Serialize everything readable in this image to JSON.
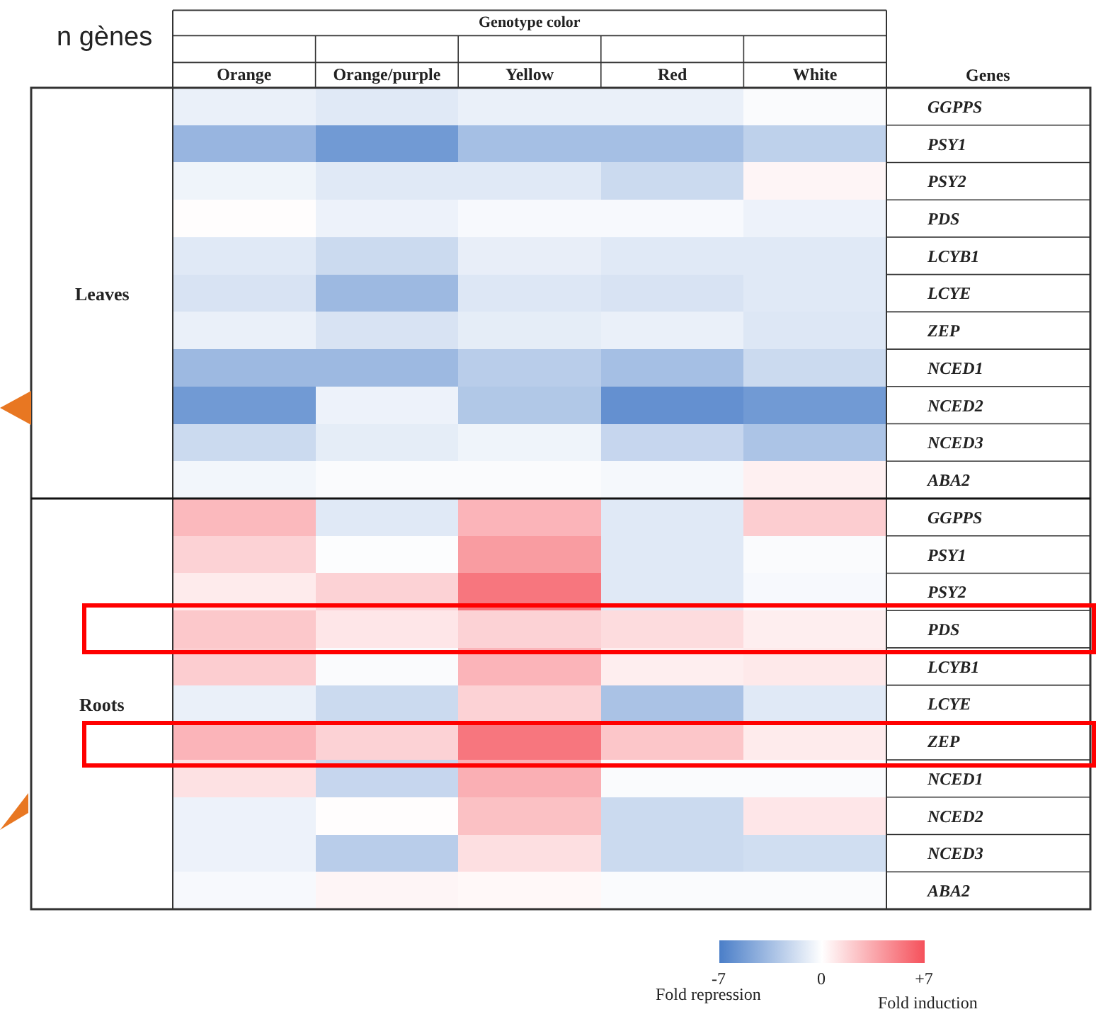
{
  "chart_data": {
    "type": "heatmap",
    "categories": [
      "Orange",
      "Orange/purple",
      "Yellow",
      "Red",
      "White"
    ],
    "y_categories": [
      "GGPPS",
      "PSY1",
      "PSY2",
      "PDS",
      "LCYB1",
      "LCYE",
      "ZEP",
      "NCED1",
      "NCED2",
      "NCED3",
      "ABA2",
      "GGPPS",
      "PSY1",
      "PSY2",
      "PDS",
      "LCYB1",
      "LCYE",
      "ZEP",
      "NCED1",
      "NCED2",
      "NCED3",
      "ABA2"
    ],
    "cells": [
      [
        -0.8,
        -1.2,
        -0.8,
        -0.8,
        -0.2
      ],
      [
        -4,
        -5.5,
        -3.5,
        -3.5,
        -2.5
      ],
      [
        -0.6,
        -1.2,
        -1.2,
        -2,
        0.4
      ],
      [
        0.1,
        -0.7,
        -0.3,
        -0.3,
        -0.7
      ],
      [
        -1.2,
        -2,
        -0.9,
        -1.2,
        -1.2
      ],
      [
        -1.5,
        -3.8,
        -1.3,
        -1.5,
        -1.2
      ],
      [
        -0.8,
        -1.5,
        -1,
        -0.8,
        -1.3
      ],
      [
        -3.8,
        -3.8,
        -2.7,
        -3.5,
        -2
      ],
      [
        -5.5,
        -0.7,
        -3,
        -6,
        -5.5
      ],
      [
        -2,
        -1,
        -0.6,
        -2.2,
        -3.2
      ],
      [
        -0.5,
        -0.2,
        -0.2,
        -0.4,
        0.6
      ],
      [
        2.8,
        -1.2,
        3,
        -1.2,
        2
      ],
      [
        1.8,
        -0.1,
        4,
        -1.2,
        -0.2
      ],
      [
        0.8,
        1.8,
        5.5,
        -1.2,
        -0.3
      ],
      [
        2.2,
        1,
        1.8,
        1.4,
        0.7
      ],
      [
        2,
        -0.2,
        3,
        0.7,
        0.9
      ],
      [
        -0.8,
        -2,
        1.8,
        -3.3,
        -1.2
      ],
      [
        3,
        1.8,
        5.5,
        2.3,
        0.8
      ],
      [
        1.2,
        -2.2,
        3.2,
        -0.2,
        -0.2
      ],
      [
        -0.7,
        0.1,
        2.5,
        -2,
        1
      ],
      [
        -0.7,
        -2.7,
        1.3,
        -2,
        -1.8
      ],
      [
        -0.3,
        0.4,
        0.3,
        -0.2,
        -0.2
      ]
    ],
    "colors": [
      "#4a7ec8",
      "#ffffff",
      "#f5515b"
    ],
    "clim": [
      -7,
      7
    ],
    "cticks": [
      {
        "value": -7,
        "label": "-7"
      },
      0,
      {
        "value": 7,
        "label": "+7"
      }
    ],
    "annotations": [
      "Genotype color",
      "Genes",
      "Leaves",
      "Roots",
      "Fold repression",
      "Fold induction",
      "n gènes"
    ]
  }
}
